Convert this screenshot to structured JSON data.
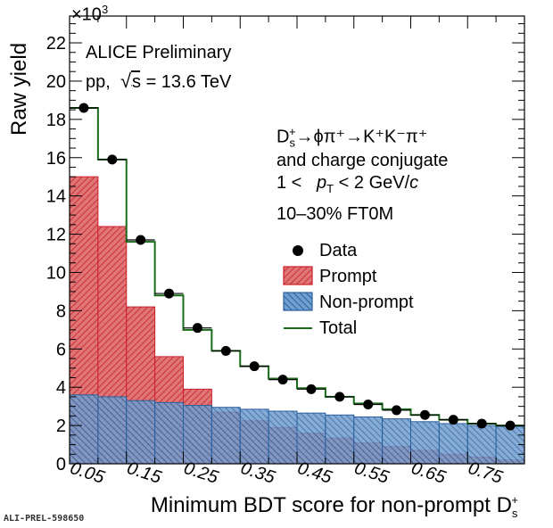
{
  "chart_data": {
    "type": "bar",
    "xlabel_main": "Minimum BDT score for non-prompt D",
    "xlabel_sub": "s",
    "xlabel_sup": "+",
    "ylabel": "Raw yield",
    "y_multiplier": "×10",
    "y_multiplier_exp": "3",
    "xlim": [
      0.0,
      0.8
    ],
    "ylim": [
      0,
      23.4
    ],
    "y_ticks": [
      0,
      2,
      4,
      6,
      8,
      10,
      12,
      14,
      16,
      18,
      20,
      22
    ],
    "x_tick_labels": [
      "0.05",
      "0.15",
      "0.25",
      "0.35",
      "0.45",
      "0.55",
      "0.65",
      "0.75"
    ],
    "bin_edges": [
      0.0,
      0.05,
      0.1,
      0.15,
      0.2,
      0.25,
      0.3,
      0.35,
      0.4,
      0.45,
      0.5,
      0.55,
      0.6,
      0.65,
      0.7,
      0.75,
      0.8
    ],
    "series": [
      {
        "name": "Prompt",
        "values": [
          15.0,
          12.4,
          8.2,
          5.6,
          3.9,
          2.7,
          2.25,
          1.9,
          1.6,
          1.35,
          1.1,
          0.9,
          0.7,
          0.5,
          0.35,
          0.2
        ]
      },
      {
        "name": "Non-prompt",
        "values": [
          3.6,
          3.5,
          3.3,
          3.2,
          3.05,
          2.95,
          2.85,
          2.75,
          2.65,
          2.55,
          2.45,
          2.35,
          2.2,
          2.1,
          2.0,
          1.95
        ]
      },
      {
        "name": "Total",
        "values": [
          18.6,
          15.9,
          11.6,
          8.8,
          7.0,
          5.9,
          5.1,
          4.45,
          3.95,
          3.5,
          3.15,
          2.85,
          2.55,
          2.3,
          2.1,
          2.0
        ]
      },
      {
        "name": "Data",
        "values": [
          18.6,
          15.9,
          11.7,
          8.9,
          7.1,
          5.9,
          5.1,
          4.4,
          3.9,
          3.5,
          3.1,
          2.8,
          2.55,
          2.3,
          2.1,
          2.0
        ]
      }
    ],
    "colors": {
      "prompt": "#cc1f2c",
      "nonprompt": "#2a5f9e",
      "total": "#1a6b1a",
      "data": "#000000"
    },
    "legend": {
      "placement": "right",
      "entries": [
        "Data",
        "Prompt",
        "Non-prompt",
        "Total"
      ]
    },
    "annotations": {
      "experiment": "ALICE Preliminary",
      "system": "pp,",
      "energy": "s = 13.6 TeV",
      "decay_line": "D⁺ₛ→φπ⁺→K⁺K⁻π⁺",
      "decay_prefix": "D",
      "decay_sub": "s",
      "decay_sup": "+",
      "decay_rest": "→ϕπ⁺→K⁺K⁻π⁺",
      "conjugate": "and charge conjugate",
      "pt_left": "1 <",
      "pt_p": "p",
      "pt_sub": "T",
      "pt_right": "< 2 GeV/",
      "pt_c": "c",
      "centrality": "10–30% FT0M"
    },
    "figure_id": "ALI-PREL-598650"
  }
}
